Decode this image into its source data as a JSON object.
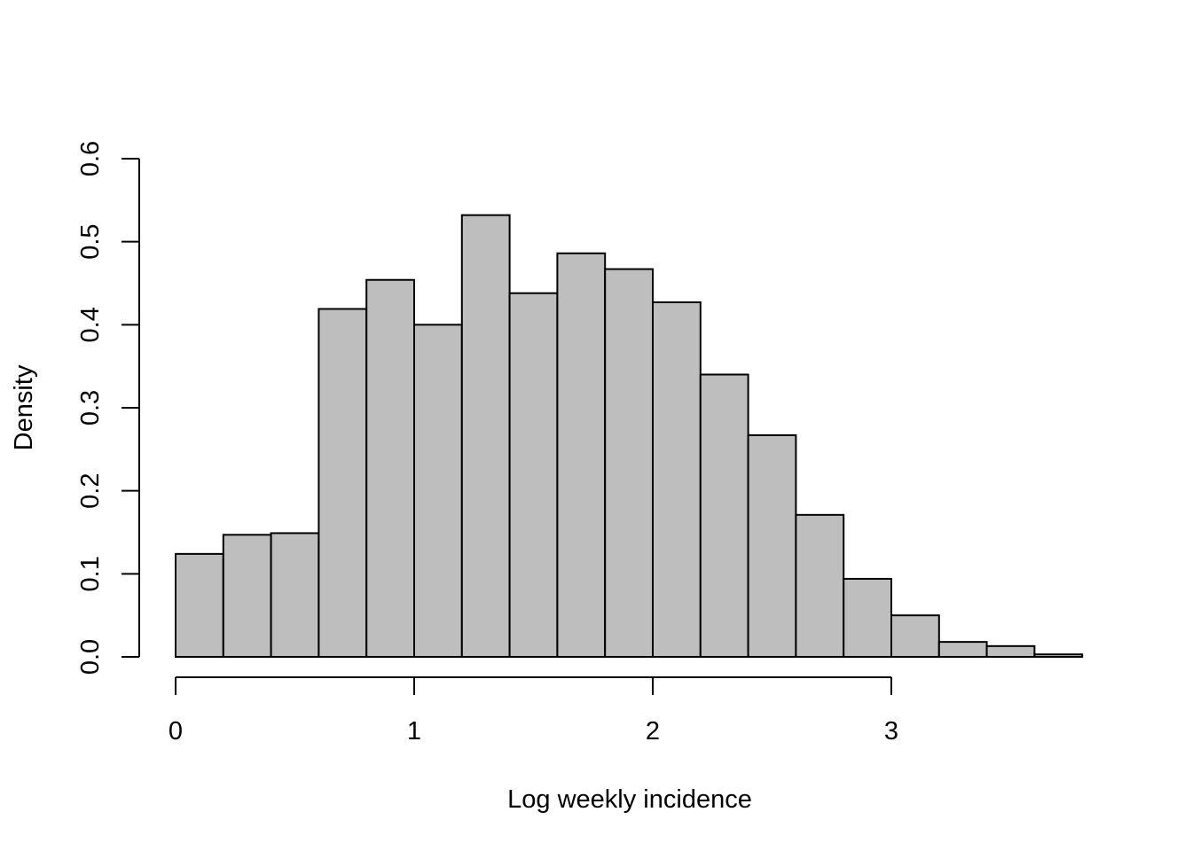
{
  "chart_data": {
    "type": "bar",
    "variant": "histogram",
    "xlabel": "Log weekly incidence",
    "ylabel": "Density",
    "xlim": [
      0,
      3.8
    ],
    "ylim": [
      0,
      0.6
    ],
    "x_ticks": [
      "0",
      "1",
      "2",
      "3"
    ],
    "y_ticks": [
      "0.0",
      "0.1",
      "0.2",
      "0.3",
      "0.4",
      "0.5",
      "0.6"
    ],
    "bin_width": 0.2,
    "bins": [
      {
        "start": 0.0,
        "end": 0.2,
        "density": 0.124
      },
      {
        "start": 0.2,
        "end": 0.4,
        "density": 0.147
      },
      {
        "start": 0.4,
        "end": 0.6,
        "density": 0.149
      },
      {
        "start": 0.6,
        "end": 0.8,
        "density": 0.419
      },
      {
        "start": 0.8,
        "end": 1.0,
        "density": 0.454
      },
      {
        "start": 1.0,
        "end": 1.2,
        "density": 0.4
      },
      {
        "start": 1.2,
        "end": 1.4,
        "density": 0.532
      },
      {
        "start": 1.4,
        "end": 1.6,
        "density": 0.438
      },
      {
        "start": 1.6,
        "end": 1.8,
        "density": 0.486
      },
      {
        "start": 1.8,
        "end": 2.0,
        "density": 0.467
      },
      {
        "start": 2.0,
        "end": 2.2,
        "density": 0.427
      },
      {
        "start": 2.2,
        "end": 2.4,
        "density": 0.34
      },
      {
        "start": 2.4,
        "end": 2.6,
        "density": 0.267
      },
      {
        "start": 2.6,
        "end": 2.8,
        "density": 0.171
      },
      {
        "start": 2.8,
        "end": 3.0,
        "density": 0.094
      },
      {
        "start": 3.0,
        "end": 3.2,
        "density": 0.05
      },
      {
        "start": 3.2,
        "end": 3.4,
        "density": 0.018
      },
      {
        "start": 3.4,
        "end": 3.6,
        "density": 0.013
      },
      {
        "start": 3.6,
        "end": 3.8,
        "density": 0.003
      }
    ],
    "grid": false,
    "legend": "none",
    "bar_color": "#bebebe",
    "edge_color": "#000000"
  }
}
